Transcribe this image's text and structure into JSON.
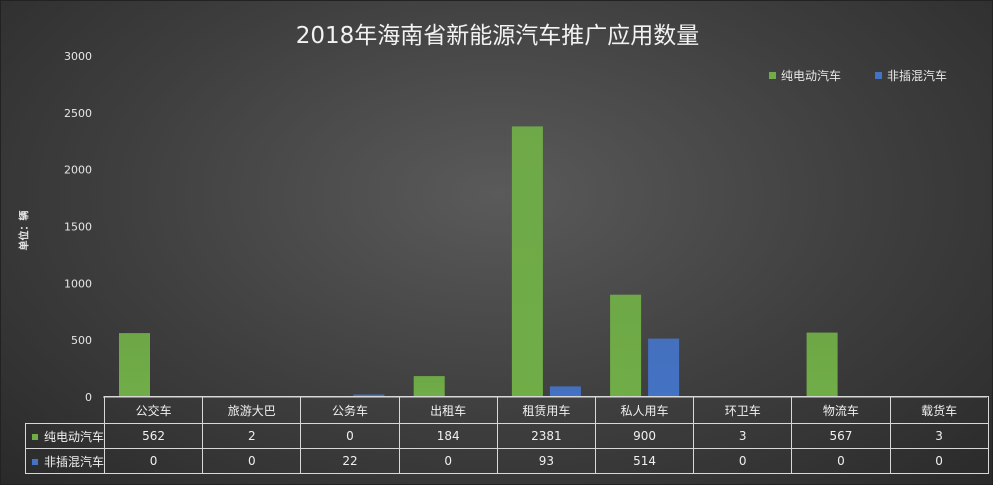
{
  "chart_data": {
    "type": "bar",
    "title": "2018年海南省新能源汽车推广应用数量",
    "ylabel": "单位：辆",
    "xlabel": "",
    "ylim": [
      0,
      3000
    ],
    "yticks": [
      "0",
      "500",
      "1000",
      "1500",
      "2000",
      "2500",
      "3000"
    ],
    "categories": [
      "公交车",
      "旅游大巴",
      "公务车",
      "出租车",
      "租赁用车",
      "私人用车",
      "环卫车",
      "物流车",
      "载货车"
    ],
    "series": [
      {
        "name": "纯电动汽车",
        "color": "#70ad47",
        "values": [
          562,
          2,
          0,
          184,
          2381,
          900,
          3,
          567,
          3
        ]
      },
      {
        "name": "非插混汽车",
        "color": "#4472c4",
        "values": [
          0,
          0,
          22,
          0,
          93,
          514,
          0,
          0,
          0
        ]
      }
    ],
    "legend_position": "top-right",
    "grid": false,
    "data_table": true
  }
}
